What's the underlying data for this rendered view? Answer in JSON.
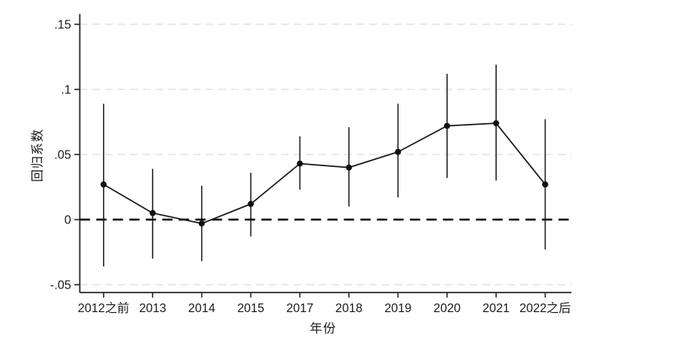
{
  "chart_data": {
    "type": "line",
    "subtype": "coefficient-plot-with-confidence-intervals",
    "title": "",
    "xlabel": "年份",
    "ylabel": "回归系数",
    "legend": "none",
    "grid": "horizontal-dashed",
    "categories": [
      "2012之前",
      "2013",
      "2014",
      "2015",
      "2017",
      "2018",
      "2019",
      "2020",
      "2021",
      "2022之后"
    ],
    "series": [
      {
        "name": "回归系数",
        "values": [
          0.027,
          0.005,
          -0.003,
          0.012,
          0.043,
          0.04,
          0.052,
          0.072,
          0.074,
          0.027
        ]
      }
    ],
    "ci_low": [
      -0.036,
      -0.03,
      -0.032,
      -0.013,
      0.023,
      0.01,
      0.017,
      0.032,
      0.03,
      -0.023
    ],
    "ci_high": [
      0.089,
      0.039,
      0.026,
      0.036,
      0.064,
      0.071,
      0.089,
      0.112,
      0.119,
      0.077
    ],
    "ylim": [
      -0.05,
      0.15
    ],
    "yticks": [
      {
        "value": -0.05,
        "label": "-.05"
      },
      {
        "value": 0,
        "label": "0"
      },
      {
        "value": 0.05,
        "label": ".05"
      },
      {
        "value": 0.1,
        "label": ".1"
      },
      {
        "value": 0.15,
        "label": ".15"
      }
    ],
    "reference_line_y": 0,
    "colors": {
      "series": "#1a1a1a",
      "marker": "#111111",
      "grid": "#dddddd",
      "reference": "#000000",
      "axis": "#2a2a2a",
      "text": "#1a1a1a",
      "background": "#ffffff"
    }
  }
}
